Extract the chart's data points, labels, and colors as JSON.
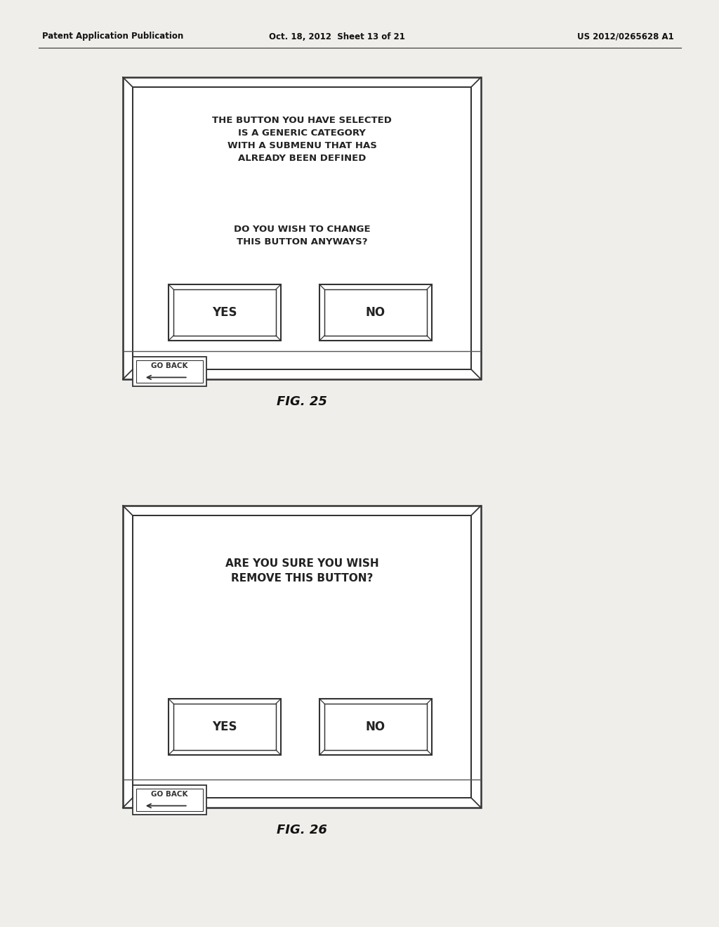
{
  "bg_color": "#f0eeeb",
  "header_left": "Patent Application Publication",
  "header_mid": "Oct. 18, 2012  Sheet 13 of 21",
  "header_right": "US 2012/0265628 A1",
  "fig25": {
    "label": "FIG. 25",
    "msg1": "THE BUTTON YOU HAVE SELECTED\nIS A GENERIC CATEGORY\nWITH A SUBMENU THAT HAS\nALREADY BEEN DEFINED",
    "msg2": "DO YOU WISH TO CHANGE\nTHIS BUTTON ANYWAYS?",
    "btn1": "YES",
    "btn2": "NO",
    "goback": "GO BACK"
  },
  "fig26": {
    "label": "FIG. 26",
    "msg1": "ARE YOU SURE YOU WISH\nREMOVE THIS BUTTON?",
    "btn1": "YES",
    "btn2": "NO",
    "goback": "GO BACK"
  },
  "frame_color": "#333333",
  "inner_frame_color": "#555555",
  "btn_color": "#444444",
  "text_color": "#222222"
}
